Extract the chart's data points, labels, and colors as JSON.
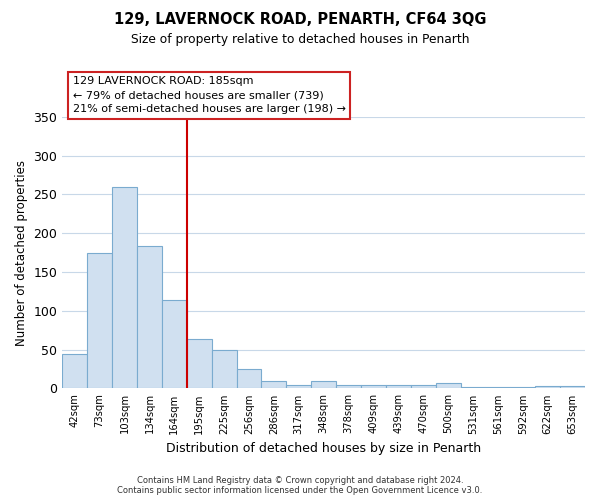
{
  "title": "129, LAVERNOCK ROAD, PENARTH, CF64 3QG",
  "subtitle": "Size of property relative to detached houses in Penarth",
  "xlabel": "Distribution of detached houses by size in Penarth",
  "ylabel": "Number of detached properties",
  "bar_labels": [
    "42sqm",
    "73sqm",
    "103sqm",
    "134sqm",
    "164sqm",
    "195sqm",
    "225sqm",
    "256sqm",
    "286sqm",
    "317sqm",
    "348sqm",
    "378sqm",
    "409sqm",
    "439sqm",
    "470sqm",
    "500sqm",
    "531sqm",
    "561sqm",
    "592sqm",
    "622sqm",
    "653sqm"
  ],
  "bar_values": [
    45,
    175,
    260,
    184,
    114,
    64,
    50,
    25,
    9,
    5,
    9,
    5,
    5,
    5,
    5,
    7,
    2,
    2,
    2,
    3,
    3
  ],
  "bar_color": "#d0e0f0",
  "bar_edge_color": "#7aabcf",
  "vline_x_index": 5,
  "vline_color": "#cc0000",
  "ylim": [
    0,
    350
  ],
  "yticks": [
    0,
    50,
    100,
    150,
    200,
    250,
    300,
    350
  ],
  "annotation_title": "129 LAVERNOCK ROAD: 185sqm",
  "annotation_line1": "← 79% of detached houses are smaller (739)",
  "annotation_line2": "21% of semi-detached houses are larger (198) →",
  "footer_line1": "Contains HM Land Registry data © Crown copyright and database right 2024.",
  "footer_line2": "Contains public sector information licensed under the Open Government Licence v3.0.",
  "background_color": "#ffffff",
  "grid_color": "#c8d8e8"
}
